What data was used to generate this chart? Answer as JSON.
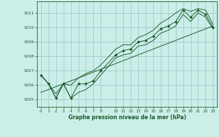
{
  "xlabel": "Graphe pression niveau de la mer (hPa)",
  "bg_color": "#cceee8",
  "grid_color": "#99cccc",
  "line_color": "#1a5c2a",
  "xlim": [
    -0.5,
    23.5
  ],
  "ylim": [
    1004.5,
    1011.8
  ],
  "yticks": [
    1005,
    1006,
    1007,
    1008,
    1009,
    1010,
    1011
  ],
  "xticks": [
    0,
    1,
    2,
    3,
    4,
    5,
    6,
    7,
    8,
    10,
    11,
    12,
    13,
    14,
    15,
    16,
    17,
    18,
    19,
    20,
    21,
    22,
    23
  ],
  "hours": [
    0,
    1,
    2,
    3,
    4,
    5,
    6,
    7,
    8,
    10,
    11,
    12,
    13,
    14,
    15,
    16,
    17,
    18,
    19,
    20,
    21,
    22,
    23
  ],
  "pressure_main": [
    1006.7,
    1006.1,
    1005.1,
    1006.1,
    1005.1,
    1006.1,
    1006.1,
    1006.3,
    1007.0,
    1008.1,
    1008.4,
    1008.5,
    1009.0,
    1009.1,
    1009.4,
    1009.9,
    1010.1,
    1010.4,
    1011.2,
    1010.7,
    1011.2,
    1010.9,
    1010.0
  ],
  "pressure_high": [
    1006.7,
    1006.1,
    1005.4,
    1006.1,
    1006.0,
    1006.5,
    1006.8,
    1007.0,
    1007.4,
    1008.5,
    1008.8,
    1008.8,
    1009.3,
    1009.5,
    1009.8,
    1010.3,
    1010.6,
    1011.0,
    1011.3,
    1011.1,
    1011.3,
    1011.2,
    1010.2
  ],
  "pressure_low": [
    1006.7,
    1006.1,
    1005.1,
    1006.1,
    1005.1,
    1005.5,
    1005.7,
    1006.1,
    1006.7,
    1007.9,
    1008.1,
    1008.2,
    1008.7,
    1008.8,
    1009.1,
    1009.6,
    1009.8,
    1010.1,
    1010.9,
    1010.4,
    1011.0,
    1010.7,
    1009.9
  ],
  "trend_x": [
    0,
    23
  ],
  "trend_y": [
    1005.5,
    1010.1
  ]
}
